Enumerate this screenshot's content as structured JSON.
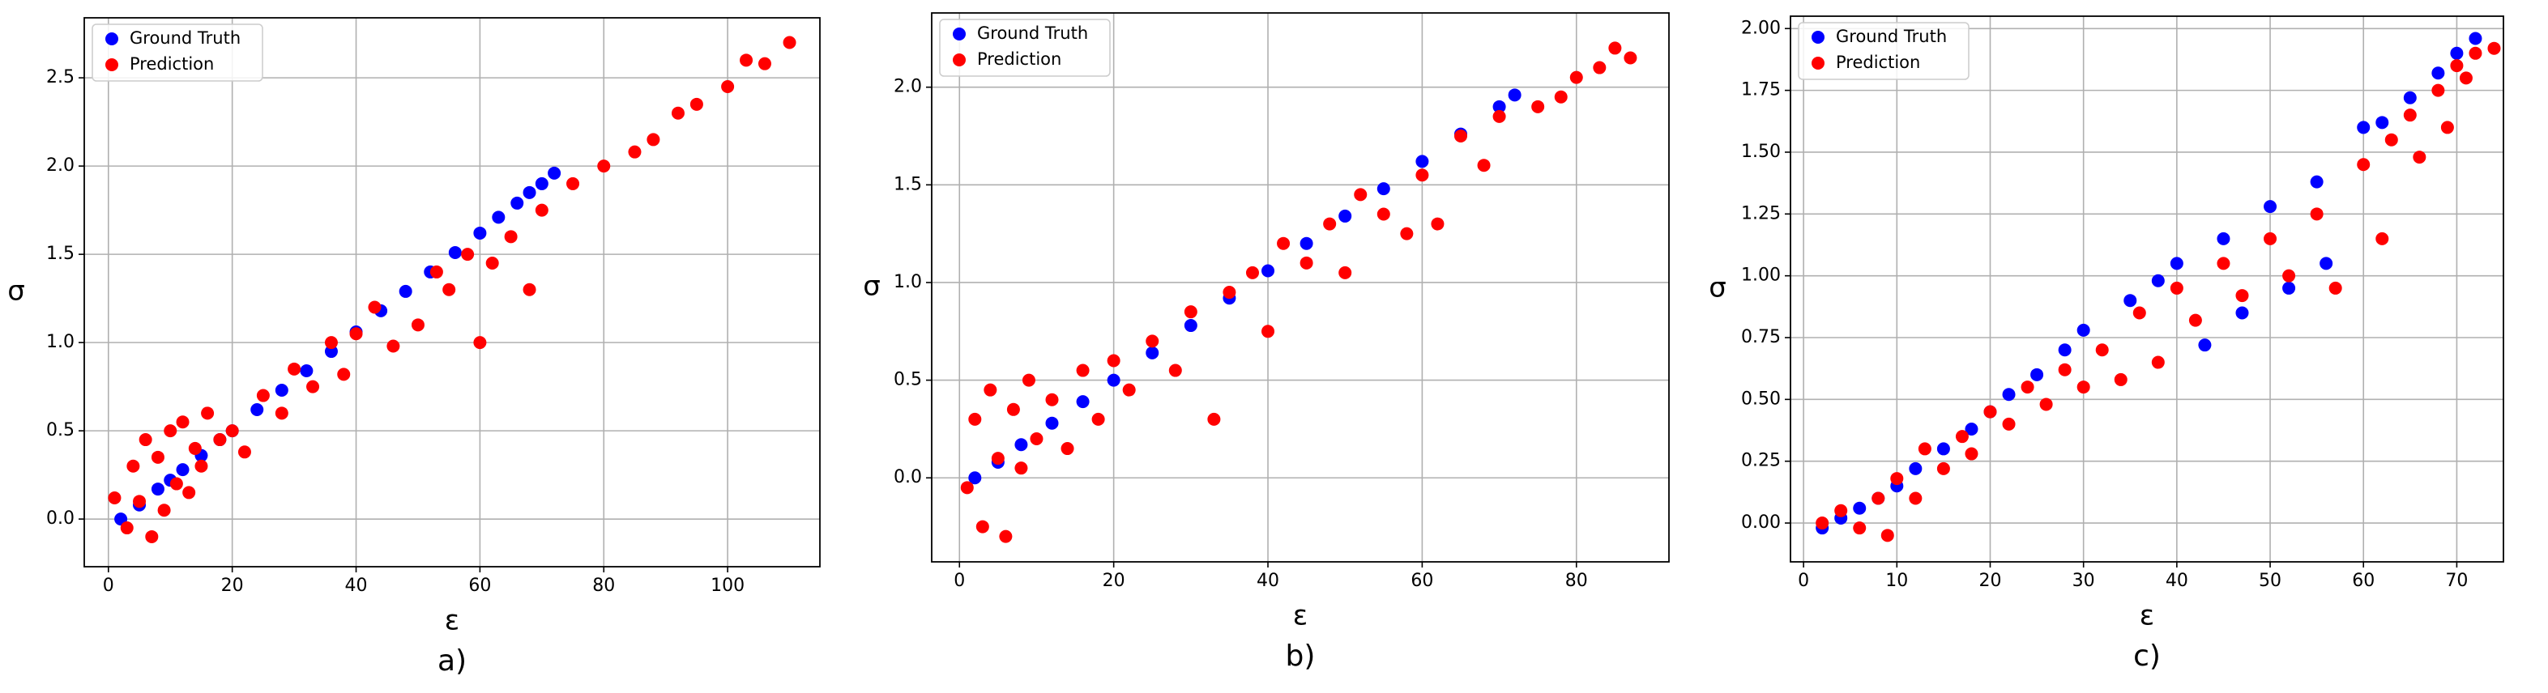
{
  "chart_data": [
    {
      "type": "scatter",
      "caption": "a)",
      "x_label": "ε",
      "y_label": "σ",
      "grid": true,
      "legend": "upper left",
      "xlim": [
        -3.9,
        114.9
      ],
      "ylim": [
        -0.27,
        2.84
      ],
      "xticks": [
        0,
        20,
        40,
        60,
        80,
        100
      ],
      "yticks": [
        {
          "value": 0,
          "label": "0.0"
        },
        0.5,
        {
          "value": 1,
          "label": "1.0"
        },
        1.5,
        {
          "value": 2,
          "label": "2.0"
        },
        2.5
      ],
      "series": [
        {
          "name": "Ground Truth",
          "color": "#0000ff",
          "x": [
            2,
            5,
            8,
            10,
            12,
            15,
            18,
            20,
            24,
            28,
            32,
            36,
            40,
            44,
            48,
            52,
            56,
            60,
            63,
            66,
            68,
            70,
            72
          ],
          "values": [
            0,
            0.08,
            0.17,
            0.22,
            0.28,
            0.36,
            0.45,
            0.5,
            0.62,
            0.73,
            0.84,
            0.95,
            1.06,
            1.18,
            1.29,
            1.4,
            1.51,
            1.62,
            1.71,
            1.79,
            1.85,
            1.9,
            1.96
          ]
        },
        {
          "name": "Prediction",
          "color": "#ff0000",
          "x": [
            1,
            3,
            4,
            5,
            6,
            7,
            8,
            9,
            10,
            11,
            12,
            13,
            14,
            15,
            16,
            18,
            20,
            22,
            25,
            28,
            30,
            33,
            36,
            38,
            40,
            43,
            46,
            50,
            53,
            55,
            58,
            60,
            62,
            65,
            68,
            70,
            75,
            80,
            85,
            88,
            92,
            95,
            100,
            103,
            106,
            110
          ],
          "values": [
            0.12,
            -0.05,
            0.3,
            0.1,
            0.45,
            -0.1,
            0.35,
            0.05,
            0.5,
            0.2,
            0.55,
            0.15,
            0.4,
            0.3,
            0.6,
            0.45,
            0.5,
            0.38,
            0.7,
            0.6,
            0.85,
            0.75,
            1.0,
            0.82,
            1.05,
            1.2,
            0.98,
            1.1,
            1.4,
            1.3,
            1.5,
            1.0,
            1.45,
            1.6,
            1.3,
            1.75,
            1.9,
            2.0,
            2.08,
            2.15,
            2.3,
            2.35,
            2.45,
            2.6,
            2.58,
            2.7
          ]
        }
      ]
    },
    {
      "type": "scatter",
      "caption": "b)",
      "x_label": "ε",
      "y_label": "σ",
      "grid": true,
      "legend": "upper left",
      "xlim": [
        -3.6,
        92.0
      ],
      "ylim": [
        -0.43,
        2.38
      ],
      "xticks": [
        0,
        20,
        40,
        60,
        80
      ],
      "yticks": [
        {
          "value": 0,
          "label": "0.0"
        },
        0.5,
        {
          "value": 1,
          "label": "1.0"
        },
        1.5,
        {
          "value": 2,
          "label": "2.0"
        }
      ],
      "series": [
        {
          "name": "Ground Truth",
          "color": "#0000ff",
          "x": [
            2,
            5,
            8,
            12,
            16,
            20,
            25,
            30,
            35,
            40,
            45,
            50,
            55,
            60,
            65,
            70,
            72
          ],
          "values": [
            0,
            0.08,
            0.17,
            0.28,
            0.39,
            0.5,
            0.64,
            0.78,
            0.92,
            1.06,
            1.2,
            1.34,
            1.48,
            1.62,
            1.76,
            1.9,
            1.96
          ]
        },
        {
          "name": "Prediction",
          "color": "#ff0000",
          "x": [
            1,
            2,
            3,
            4,
            5,
            6,
            7,
            8,
            9,
            10,
            12,
            14,
            16,
            18,
            20,
            22,
            25,
            28,
            30,
            33,
            35,
            38,
            40,
            42,
            45,
            48,
            50,
            52,
            55,
            58,
            60,
            62,
            65,
            68,
            70,
            75,
            78,
            80,
            83,
            85,
            87
          ],
          "values": [
            -0.05,
            0.3,
            -0.25,
            0.45,
            0.1,
            -0.3,
            0.35,
            0.05,
            0.5,
            0.2,
            0.4,
            0.15,
            0.55,
            0.3,
            0.6,
            0.45,
            0.7,
            0.55,
            0.85,
            0.3,
            0.95,
            1.05,
            0.75,
            1.2,
            1.1,
            1.3,
            1.05,
            1.45,
            1.35,
            1.25,
            1.55,
            1.3,
            1.75,
            1.6,
            1.85,
            1.9,
            1.95,
            2.05,
            2.1,
            2.2,
            2.15
          ]
        }
      ]
    },
    {
      "type": "scatter",
      "caption": "c)",
      "x_label": "ε",
      "y_label": "σ",
      "grid": true,
      "legend": "upper left",
      "xlim": [
        -1.4,
        75.0
      ],
      "ylim": [
        -0.157,
        2.05
      ],
      "xticks": [
        0,
        10,
        20,
        30,
        40,
        50,
        60,
        70
      ],
      "yticks": [
        {
          "value": 0,
          "label": "0.00"
        },
        0.25,
        {
          "value": 0.5,
          "label": "0.50"
        },
        0.75,
        {
          "value": 1,
          "label": "1.00"
        },
        1.25,
        {
          "value": 1.5,
          "label": "1.50"
        },
        1.75,
        {
          "value": 2,
          "label": "2.00"
        }
      ],
      "series": [
        {
          "name": "Ground Truth",
          "color": "#0000ff",
          "x": [
            2,
            4,
            6,
            8,
            10,
            12,
            15,
            18,
            20,
            22,
            25,
            28,
            30,
            35,
            38,
            40,
            43,
            45,
            47,
            50,
            52,
            55,
            56,
            60,
            62,
            65,
            68,
            70,
            72
          ],
          "values": [
            -0.02,
            0.02,
            0.06,
            0.1,
            0.15,
            0.22,
            0.3,
            0.38,
            0.45,
            0.52,
            0.6,
            0.7,
            0.78,
            0.9,
            0.98,
            1.05,
            0.72,
            1.15,
            0.85,
            1.28,
            0.95,
            1.38,
            1.05,
            1.6,
            1.62,
            1.72,
            1.82,
            1.9,
            1.96
          ]
        },
        {
          "name": "Prediction",
          "color": "#ff0000",
          "x": [
            2,
            4,
            6,
            8,
            9,
            10,
            12,
            13,
            15,
            17,
            18,
            20,
            22,
            24,
            26,
            28,
            30,
            32,
            34,
            36,
            38,
            40,
            42,
            45,
            47,
            50,
            52,
            55,
            57,
            60,
            62,
            63,
            65,
            66,
            68,
            69,
            70,
            71,
            72,
            74
          ],
          "values": [
            0.0,
            0.05,
            -0.02,
            0.1,
            -0.05,
            0.18,
            0.1,
            0.3,
            0.22,
            0.35,
            0.28,
            0.45,
            0.4,
            0.55,
            0.48,
            0.62,
            0.55,
            0.7,
            0.58,
            0.85,
            0.65,
            0.95,
            0.82,
            1.05,
            0.92,
            1.15,
            1.0,
            1.25,
            0.95,
            1.45,
            1.15,
            1.55,
            1.65,
            1.48,
            1.75,
            1.6,
            1.85,
            1.8,
            1.9,
            1.92
          ]
        }
      ]
    }
  ]
}
